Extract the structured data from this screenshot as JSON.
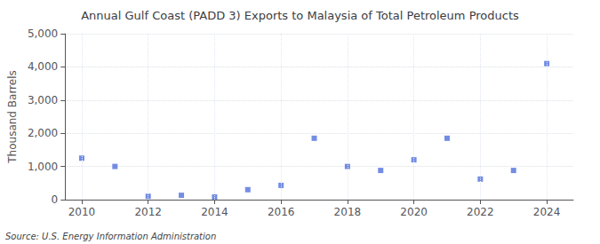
{
  "chart_data": {
    "type": "scatter",
    "title": "Annual Gulf Coast (PADD 3) Exports to Malaysia of Total Petroleum Products",
    "ylabel": "Thousand Barrels",
    "annotation": "Source: U.S. Energy Information Administration",
    "x": [
      2010,
      2011,
      2012,
      2013,
      2014,
      2015,
      2016,
      2017,
      2018,
      2019,
      2020,
      2021,
      2022,
      2023,
      2024
    ],
    "values": [
      1250,
      1000,
      100,
      130,
      80,
      300,
      430,
      1850,
      1000,
      880,
      1200,
      1850,
      620,
      880,
      4100
    ],
    "marker": "square",
    "xlim": [
      2009.5,
      2024.8
    ],
    "xticks": [
      2010,
      2012,
      2014,
      2016,
      2018,
      2020,
      2022,
      2024
    ],
    "ylim": [
      0,
      5000
    ],
    "yticks": [
      0,
      {
        "value": 1000,
        "label": "1,000"
      },
      {
        "value": 2000,
        "label": "2,000"
      },
      {
        "value": 3000,
        "label": "3,000"
      },
      {
        "value": 4000,
        "label": "4,000"
      },
      {
        "value": 5000,
        "label": "5,000"
      }
    ],
    "grid": true
  }
}
